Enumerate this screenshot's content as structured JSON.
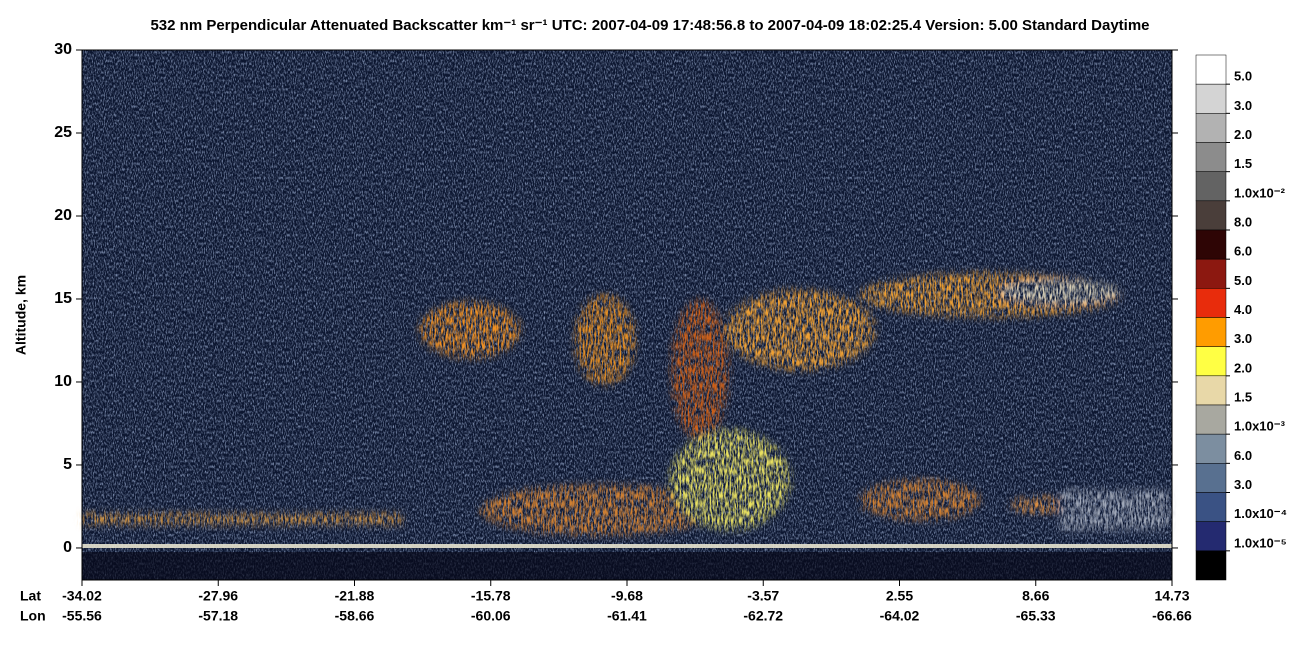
{
  "chart_data": {
    "type": "curtain",
    "title": "532 nm Perpendicular Attenuated Backscatter km⁻¹ sr⁻¹  UTC: 2007-04-09 17:48:56.8 to 2007-04-09 18:02:25.4  Version: 5.00 Standard Daytime",
    "y_label": "Altitude, km",
    "ylim": [
      -1.93,
      30
    ],
    "yticks": [
      0,
      5,
      10,
      15,
      20,
      25,
      30
    ],
    "x_row_labels": [
      "Lat",
      "Lon"
    ],
    "lat": [
      -34.02,
      -27.96,
      -21.88,
      -15.78,
      -9.68,
      -3.57,
      2.55,
      8.66,
      14.73
    ],
    "lon": [
      -55.56,
      -57.18,
      -58.66,
      -60.06,
      -61.41,
      -62.72,
      -64.02,
      -65.33,
      -66.66
    ],
    "colorbar": {
      "colors": [
        "#ffffff",
        "#d4d4d4",
        "#b2b2b2",
        "#8c8c8c",
        "#636363",
        "#4a3e3a",
        "#2e0505",
        "#8c1810",
        "#e82c0c",
        "#ff9c00",
        "#ffff44",
        "#e8d8a8",
        "#a8a8a0",
        "#7c8ea0",
        "#587090",
        "#3a5284",
        "#242a70",
        "#000000"
      ],
      "labels": [
        "5.0",
        "3.0",
        "2.0",
        "1.5",
        "1.0x10⁻²",
        "8.0",
        "6.0",
        "5.0",
        "4.0",
        "3.0",
        "2.0",
        "1.5",
        "1.0x10⁻³",
        "6.0",
        "3.0",
        "1.0x10⁻⁴",
        "1.0x10⁻⁵"
      ]
    }
  }
}
